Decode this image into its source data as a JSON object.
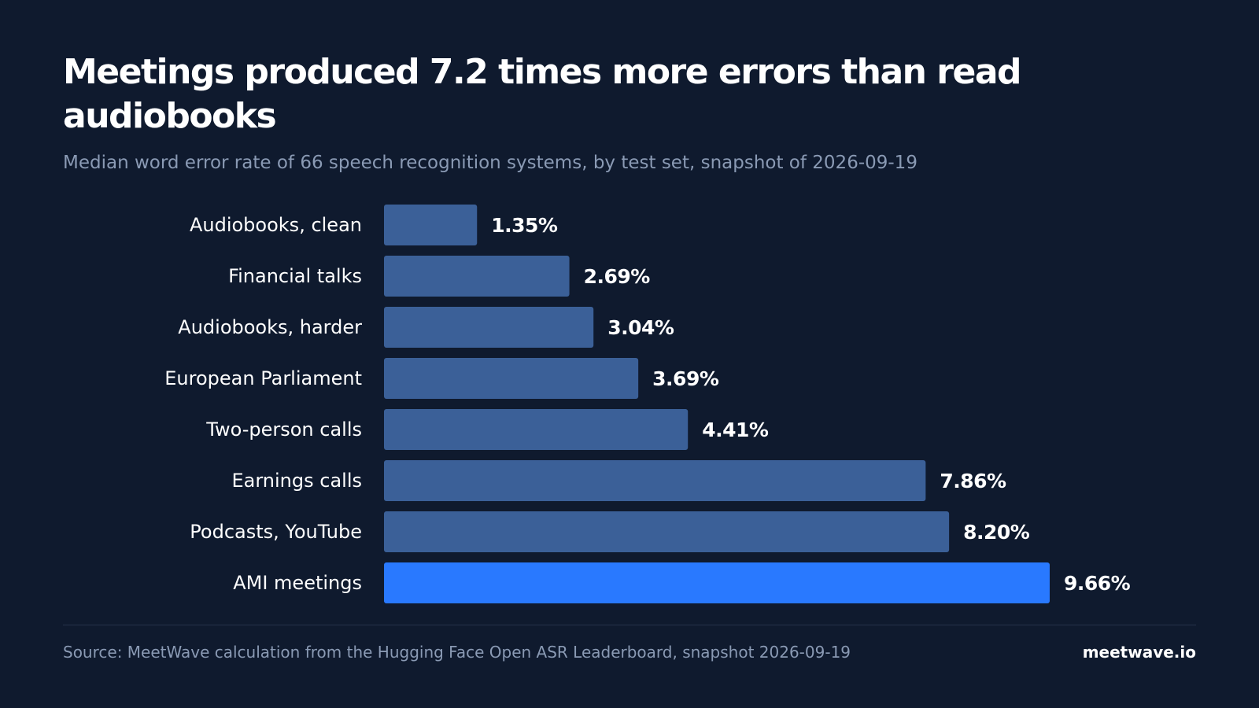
{
  "title": "Meetings produced 7.2 times more errors than read audiobooks",
  "subtitle": "Median word error rate of 66 speech recognition systems, by test set, snapshot of 2026-09-19",
  "source": "Source: MeetWave calculation from the Hugging Face Open ASR Leaderboard, snapshot 2026-09-19",
  "brand": "meetwave.io",
  "colors": {
    "background": "#0f1a2e",
    "bar": "#3b6098",
    "highlight": "#2979ff"
  },
  "chart_data": {
    "type": "bar",
    "orientation": "horizontal",
    "categories": [
      "Audiobooks, clean",
      "Financial talks",
      "Audiobooks, harder",
      "European Parliament",
      "Two-person calls",
      "Earnings calls",
      "Podcasts, YouTube",
      "AMI meetings"
    ],
    "values": [
      1.35,
      2.69,
      3.04,
      3.69,
      4.41,
      7.86,
      8.2,
      9.66
    ],
    "value_labels": [
      "1.35%",
      "2.69%",
      "3.04%",
      "3.69%",
      "4.41%",
      "7.86%",
      "8.20%",
      "9.66%"
    ],
    "highlight": "AMI meetings",
    "xlim": [
      0,
      9.66
    ],
    "grid": false,
    "legend": "none",
    "unit": "%"
  }
}
